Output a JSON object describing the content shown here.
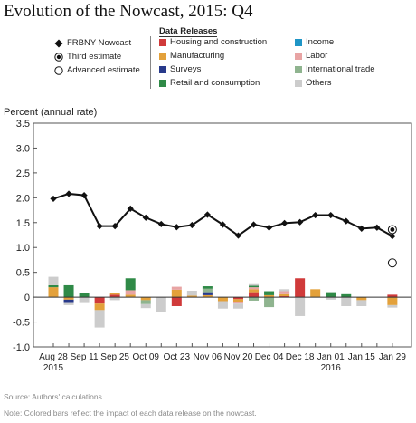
{
  "chart_data": {
    "type": "bar",
    "title": "Evolution of the Nowcast, 2015: Q4",
    "ylabel": "Percent (annual rate)",
    "xlabel": "",
    "ylim": [
      -1.0,
      3.5
    ],
    "yticks": [
      "3.5",
      "3.0",
      "2.5",
      "2.0",
      "1.5",
      "1.0",
      "0.5",
      "0",
      "-0.5",
      "-1.0"
    ],
    "grid": false,
    "legend_placement": "top",
    "legend_title": "Data Releases",
    "x_tick_labels": [
      {
        "label": "Aug 28",
        "sub": "2015",
        "week": 0
      },
      {
        "label": "Sep 11",
        "sub": "",
        "week": 2
      },
      {
        "label": "Sep 25",
        "sub": "",
        "week": 4
      },
      {
        "label": "Oct 09",
        "sub": "",
        "week": 6
      },
      {
        "label": "Oct 23",
        "sub": "",
        "week": 8
      },
      {
        "label": "Nov 06",
        "sub": "",
        "week": 10
      },
      {
        "label": "Nov 20",
        "sub": "",
        "week": 12
      },
      {
        "label": "Dec 04",
        "sub": "",
        "week": 14
      },
      {
        "label": "Dec 18",
        "sub": "",
        "week": 16
      },
      {
        "label": "Jan 01",
        "sub": "2016",
        "week": 18
      },
      {
        "label": "Jan 15",
        "sub": "",
        "week": 20
      },
      {
        "label": "Jan 29",
        "sub": "",
        "week": 22
      }
    ],
    "point_legend": [
      {
        "name": "FRBNY Nowcast",
        "marker": "diamond"
      },
      {
        "name": "Third estimate",
        "marker": "ring-dot"
      },
      {
        "name": "Advanced estimate",
        "marker": "open-circle"
      }
    ],
    "nowcast": {
      "name": "FRBNY Nowcast",
      "values": [
        1.98,
        2.08,
        2.05,
        1.43,
        1.43,
        1.78,
        1.6,
        1.47,
        1.41,
        1.45,
        1.66,
        1.46,
        1.24,
        1.46,
        1.4,
        1.49,
        1.51,
        1.65,
        1.65,
        1.53,
        1.38,
        1.4,
        1.23
      ]
    },
    "third_estimate": {
      "name": "Third estimate",
      "week": 22,
      "value": 1.36
    },
    "advanced_estimate": {
      "name": "Advanced estimate",
      "week": 22,
      "value": 0.69
    },
    "series": [
      {
        "name": "Housing and construction",
        "color": "#d03a3a",
        "values": [
          0,
          0,
          0,
          -0.13,
          0.05,
          0,
          0,
          0,
          -0.18,
          0,
          0,
          0,
          -0.04,
          0.1,
          0,
          0.02,
          0.38,
          0,
          0,
          0,
          0,
          0,
          0.05
        ]
      },
      {
        "name": "Income",
        "color": "#1f95c6",
        "values": [
          0,
          0,
          0,
          0,
          0,
          0,
          0,
          0,
          0,
          0,
          0,
          0,
          0,
          0,
          0,
          0,
          0,
          0,
          0,
          0,
          0,
          0,
          0
        ]
      },
      {
        "name": "Manufacturing",
        "color": "#e3a13b",
        "values": [
          0.2,
          -0.05,
          0,
          -0.13,
          0.04,
          0.05,
          -0.06,
          0,
          0.15,
          0.03,
          0.04,
          -0.08,
          -0.05,
          0.06,
          0.04,
          0.04,
          0,
          0.16,
          0,
          0,
          -0.06,
          0,
          -0.16
        ]
      },
      {
        "name": "Surveys",
        "color": "#283a8b",
        "values": [
          0,
          -0.05,
          0,
          0,
          0,
          0,
          0,
          0,
          0,
          0,
          0.06,
          0,
          0,
          0,
          0,
          0,
          0,
          0,
          0,
          0,
          0,
          0,
          0
        ]
      },
      {
        "name": "Labor",
        "color": "#e8a4a4",
        "values": [
          0,
          0,
          0,
          0,
          0,
          0.09,
          0,
          0,
          0.06,
          0,
          0,
          0,
          -0.04,
          0.04,
          0,
          0.06,
          0,
          0,
          0,
          0,
          0,
          0,
          0
        ]
      },
      {
        "name": "International trade",
        "color": "#8fb48f",
        "values": [
          0,
          0,
          0,
          0,
          0,
          0,
          -0.08,
          0,
          0,
          0,
          0.07,
          0,
          0,
          -0.07,
          -0.2,
          0,
          0,
          0,
          0,
          0,
          0,
          0,
          0
        ]
      },
      {
        "name": "Retail and consumption",
        "color": "#2f8a47",
        "values": [
          0.04,
          0.24,
          0.08,
          0,
          0,
          0.24,
          0,
          0,
          0,
          0,
          0.05,
          0,
          0,
          0.03,
          0.08,
          0,
          0,
          0,
          0.1,
          0.06,
          0,
          0,
          0
        ]
      },
      {
        "name": "Others",
        "color": "#cccccc",
        "values": [
          0.17,
          -0.06,
          -0.1,
          -0.35,
          -0.06,
          0,
          -0.08,
          -0.3,
          0,
          0.1,
          0,
          -0.15,
          -0.1,
          0.05,
          0,
          0.04,
          -0.38,
          0,
          -0.05,
          -0.18,
          -0.12,
          0,
          -0.05
        ]
      }
    ],
    "source": "Source: Authors' calculations.",
    "note": "Note: Colored bars reflect the impact of each data release on the nowcast."
  }
}
